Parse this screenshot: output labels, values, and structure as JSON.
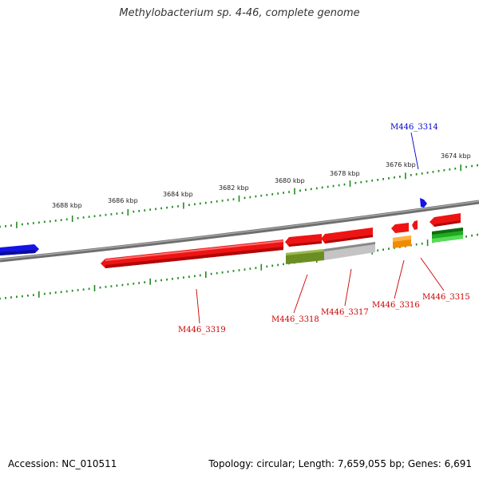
{
  "title": "Methylobacterium sp. 4-46, complete genome",
  "footer": {
    "accession": "Accession: NC_010511",
    "summary": "Topology: circular; Length: 7,659,055 bp; Genes: 6,691"
  },
  "colors": {
    "backbone": "#808080",
    "tick": "#228b22",
    "gene_red": "#ee1111",
    "gene_blue": "#1111ee",
    "gene_olive": "#6b8e23",
    "gene_gray": "#b8b8b8",
    "gene_orange": "#f08c00",
    "gene_green": "#22aa22",
    "label_red": "#cc0000",
    "label_blue": "#0000cc"
  },
  "scale_labels": [
    "3688 kbp",
    "3686 kbp",
    "3684 kbp",
    "3682 kbp",
    "3680 kbp",
    "3678 kbp",
    "3676 kbp",
    "3674 kbp"
  ],
  "gene_labels": {
    "m3314": "M446_3314",
    "m3315": "M446_3315",
    "m3316": "M446_3316",
    "m3317": "M446_3317",
    "m3318": "M446_3318",
    "m3319": "M446_3319"
  }
}
